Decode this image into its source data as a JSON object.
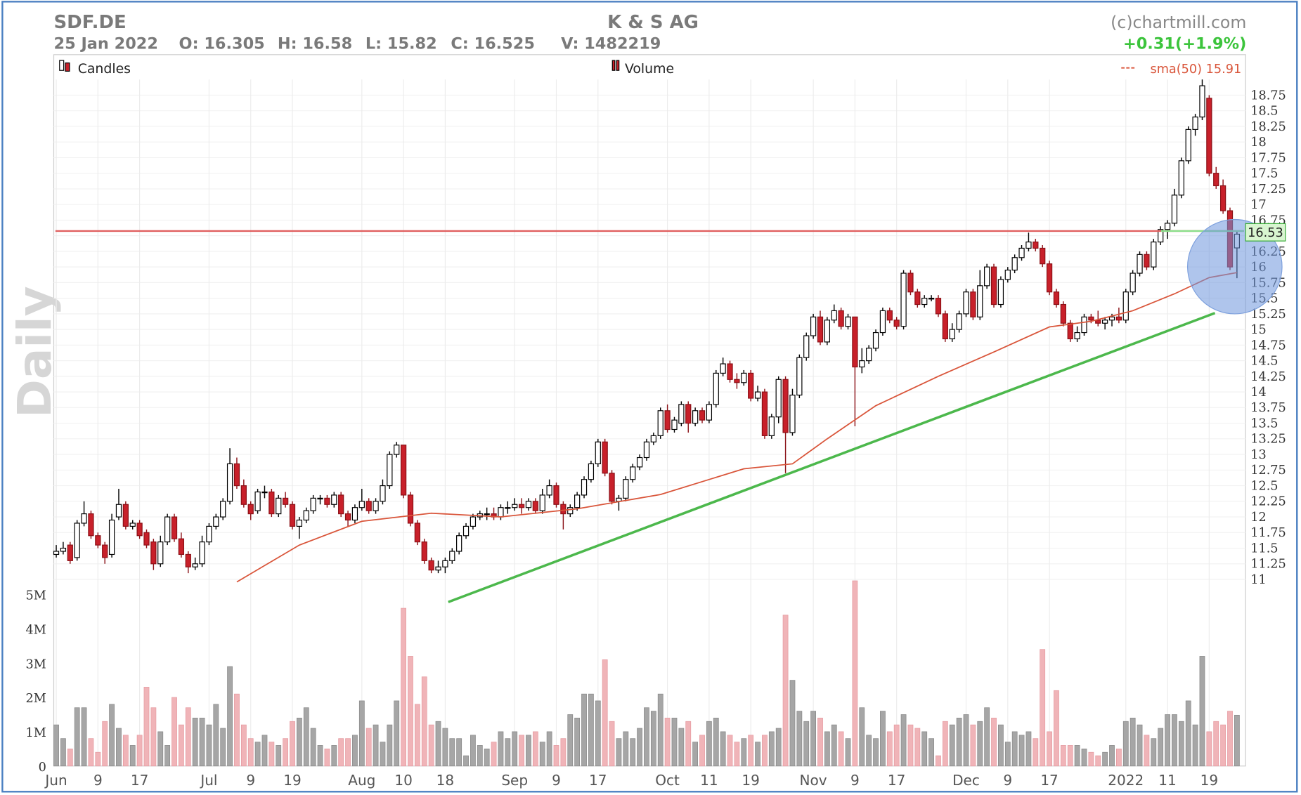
{
  "header": {
    "symbol": "SDF.DE",
    "company": "K & S AG",
    "source": "(c)chartmill.com",
    "date": "25 Jan 2022",
    "open": "O: 16.305",
    "high": "H: 16.58",
    "low": "L: 15.82",
    "close": "C: 16.525",
    "volume": "V: 1482219",
    "change": "+0.31(+1.9%)"
  },
  "chart_data": {
    "type": "candlestick",
    "label": "Daily",
    "legend": [
      "Candles",
      "Volume"
    ],
    "categories": [
      "Jun",
      null,
      null,
      null,
      null,
      null,
      "9",
      null,
      null,
      null,
      null,
      null,
      "17",
      null,
      null,
      null,
      null,
      null,
      null,
      null,
      null,
      null,
      "Jul",
      null,
      null,
      null,
      null,
      null,
      "9",
      null,
      null,
      null,
      null,
      null,
      "19",
      null,
      null,
      null,
      null,
      null,
      null,
      null,
      null,
      null,
      "Aug",
      null,
      null,
      null,
      null,
      null,
      "10",
      null,
      null,
      null,
      null,
      null,
      "18",
      null,
      null,
      null,
      null,
      null,
      null,
      null,
      null,
      null,
      "Sep",
      null,
      null,
      null,
      null,
      null,
      "9",
      null,
      null,
      null,
      null,
      null,
      "17",
      null,
      null,
      null,
      null,
      null,
      null,
      null,
      null,
      null,
      "Oct",
      null,
      null,
      null,
      null,
      null,
      "11",
      null,
      null,
      null,
      null,
      null,
      "19",
      null,
      null,
      null,
      null,
      null,
      null,
      null,
      null,
      "Nov",
      null,
      null,
      null,
      null,
      null,
      "9",
      null,
      null,
      null,
      null,
      null,
      "17",
      null,
      null,
      null,
      null,
      null,
      null,
      null,
      null,
      null,
      "Dec",
      null,
      null,
      null,
      null,
      null,
      "9",
      null,
      null,
      null,
      null,
      null,
      "17",
      null,
      null,
      null,
      null,
      null,
      null,
      null,
      null,
      null,
      null,
      "2022",
      null,
      null,
      null,
      null,
      null,
      "11",
      null,
      null,
      null,
      null,
      null,
      "19",
      null,
      null,
      null,
      null
    ],
    "ohlc": [
      [
        11.4,
        11.55,
        11.35,
        11.45
      ],
      [
        11.45,
        11.6,
        11.4,
        11.5
      ],
      [
        11.55,
        11.6,
        11.25,
        11.3
      ],
      [
        11.35,
        11.95,
        11.3,
        11.9
      ],
      [
        11.9,
        12.25,
        11.85,
        12.05
      ],
      [
        12.05,
        12.1,
        11.65,
        11.7
      ],
      [
        11.7,
        11.75,
        11.5,
        11.55
      ],
      [
        11.55,
        11.6,
        11.25,
        11.35
      ],
      [
        11.4,
        12.05,
        11.35,
        11.95
      ],
      [
        12.0,
        12.45,
        11.95,
        12.2
      ],
      [
        12.2,
        12.25,
        11.8,
        11.85
      ],
      [
        11.85,
        11.95,
        11.8,
        11.9
      ],
      [
        11.9,
        11.95,
        11.65,
        11.7
      ],
      [
        11.75,
        11.8,
        11.5,
        11.55
      ],
      [
        11.6,
        11.65,
        11.15,
        11.25
      ],
      [
        11.25,
        11.7,
        11.2,
        11.6
      ],
      [
        11.6,
        12.05,
        11.55,
        12.0
      ],
      [
        12.0,
        12.05,
        11.6,
        11.65
      ],
      [
        11.65,
        11.75,
        11.35,
        11.4
      ],
      [
        11.4,
        11.45,
        11.1,
        11.2
      ],
      [
        11.2,
        11.35,
        11.15,
        11.25
      ],
      [
        11.25,
        11.7,
        11.2,
        11.6
      ],
      [
        11.6,
        11.9,
        11.55,
        11.85
      ],
      [
        11.85,
        12.05,
        11.8,
        12.0
      ],
      [
        12.0,
        12.3,
        11.95,
        12.25
      ],
      [
        12.25,
        13.1,
        12.2,
        12.85
      ],
      [
        12.85,
        12.95,
        12.45,
        12.5
      ],
      [
        12.5,
        12.6,
        12.15,
        12.2
      ],
      [
        12.2,
        12.25,
        11.95,
        12.05
      ],
      [
        12.1,
        12.45,
        12.05,
        12.4
      ],
      [
        12.4,
        12.5,
        12.3,
        12.4
      ],
      [
        12.4,
        12.45,
        12.0,
        12.05
      ],
      [
        12.05,
        12.35,
        12.0,
        12.3
      ],
      [
        12.3,
        12.4,
        12.15,
        12.2
      ],
      [
        12.2,
        12.25,
        11.8,
        11.85
      ],
      [
        11.85,
        12.0,
        11.65,
        11.95
      ],
      [
        11.95,
        12.15,
        11.9,
        12.1
      ],
      [
        12.1,
        12.35,
        12.05,
        12.3
      ],
      [
        12.3,
        12.35,
        12.2,
        12.3
      ],
      [
        12.3,
        12.35,
        12.15,
        12.2
      ],
      [
        12.2,
        12.4,
        12.15,
        12.35
      ],
      [
        12.35,
        12.4,
        12.0,
        12.05
      ],
      [
        12.05,
        12.1,
        11.85,
        11.95
      ],
      [
        11.95,
        12.2,
        11.9,
        12.15
      ],
      [
        12.15,
        12.45,
        12.1,
        12.25
      ],
      [
        12.25,
        12.3,
        12.05,
        12.1
      ],
      [
        12.1,
        12.3,
        12.05,
        12.25
      ],
      [
        12.25,
        12.6,
        12.2,
        12.5
      ],
      [
        12.5,
        13.05,
        12.45,
        13.0
      ],
      [
        13.0,
        13.2,
        12.95,
        13.15
      ],
      [
        13.15,
        13.15,
        12.3,
        12.35
      ],
      [
        12.35,
        12.4,
        11.85,
        11.9
      ],
      [
        11.9,
        11.95,
        11.55,
        11.6
      ],
      [
        11.6,
        11.65,
        11.25,
        11.3
      ],
      [
        11.3,
        11.35,
        11.1,
        11.15
      ],
      [
        11.15,
        11.3,
        11.1,
        11.2
      ],
      [
        11.2,
        11.35,
        11.1,
        11.3
      ],
      [
        11.3,
        11.5,
        11.25,
        11.45
      ],
      [
        11.45,
        11.75,
        11.4,
        11.7
      ],
      [
        11.7,
        11.9,
        11.65,
        11.85
      ],
      [
        11.85,
        12.05,
        11.8,
        12.0
      ],
      [
        12.0,
        12.1,
        11.95,
        12.05
      ],
      [
        12.05,
        12.15,
        11.95,
        12.05
      ],
      [
        12.05,
        12.15,
        11.95,
        12.0
      ],
      [
        12.0,
        12.2,
        11.95,
        12.15
      ],
      [
        12.15,
        12.25,
        12.05,
        12.15
      ],
      [
        12.15,
        12.3,
        12.1,
        12.2
      ],
      [
        12.2,
        12.3,
        12.05,
        12.15
      ],
      [
        12.15,
        12.3,
        12.1,
        12.25
      ],
      [
        12.25,
        12.3,
        12.05,
        12.1
      ],
      [
        12.1,
        12.45,
        12.05,
        12.35
      ],
      [
        12.35,
        12.6,
        12.3,
        12.5
      ],
      [
        12.5,
        12.55,
        12.15,
        12.2
      ],
      [
        12.2,
        12.25,
        11.8,
        12.05
      ],
      [
        12.05,
        12.2,
        12.0,
        12.15
      ],
      [
        12.15,
        12.4,
        12.1,
        12.35
      ],
      [
        12.35,
        12.65,
        12.3,
        12.6
      ],
      [
        12.6,
        12.9,
        12.55,
        12.85
      ],
      [
        12.85,
        13.25,
        12.8,
        13.2
      ],
      [
        13.2,
        13.25,
        12.65,
        12.7
      ],
      [
        12.7,
        12.75,
        12.2,
        12.25
      ],
      [
        12.25,
        12.35,
        12.1,
        12.3
      ],
      [
        12.3,
        12.65,
        12.25,
        12.6
      ],
      [
        12.6,
        12.85,
        12.55,
        12.8
      ],
      [
        12.8,
        13.0,
        12.75,
        12.95
      ],
      [
        12.95,
        13.25,
        12.9,
        13.2
      ],
      [
        13.2,
        13.35,
        13.15,
        13.3
      ],
      [
        13.3,
        13.75,
        13.25,
        13.7
      ],
      [
        13.7,
        13.8,
        13.35,
        13.4
      ],
      [
        13.4,
        13.6,
        13.35,
        13.55
      ],
      [
        13.5,
        13.85,
        13.45,
        13.8
      ],
      [
        13.8,
        13.85,
        13.35,
        13.5
      ],
      [
        13.5,
        13.75,
        13.45,
        13.7
      ],
      [
        13.7,
        13.75,
        13.5,
        13.55
      ],
      [
        13.55,
        13.85,
        13.5,
        13.8
      ],
      [
        13.8,
        14.35,
        13.75,
        14.3
      ],
      [
        14.3,
        14.55,
        14.25,
        14.45
      ],
      [
        14.45,
        14.5,
        14.15,
        14.2
      ],
      [
        14.2,
        14.3,
        14.05,
        14.15
      ],
      [
        14.15,
        14.35,
        14.1,
        14.3
      ],
      [
        14.3,
        14.35,
        13.85,
        13.9
      ],
      [
        13.9,
        14.1,
        13.85,
        14.0
      ],
      [
        14.0,
        14.05,
        13.25,
        13.3
      ],
      [
        13.3,
        13.65,
        13.25,
        13.6
      ],
      [
        13.6,
        14.25,
        13.5,
        14.2
      ],
      [
        14.2,
        14.25,
        12.7,
        13.35
      ],
      [
        13.35,
        14.05,
        13.3,
        13.95
      ],
      [
        13.95,
        14.6,
        13.9,
        14.55
      ],
      [
        14.55,
        14.95,
        14.5,
        14.9
      ],
      [
        14.9,
        15.25,
        14.85,
        15.2
      ],
      [
        15.2,
        15.3,
        14.75,
        14.8
      ],
      [
        14.8,
        15.2,
        14.75,
        15.15
      ],
      [
        15.15,
        15.4,
        15.1,
        15.3
      ],
      [
        15.3,
        15.35,
        15.0,
        15.05
      ],
      [
        15.05,
        15.25,
        15.0,
        15.2
      ],
      [
        15.2,
        15.2,
        13.45,
        14.4
      ],
      [
        14.4,
        14.7,
        14.3,
        14.5
      ],
      [
        14.5,
        14.75,
        14.45,
        14.7
      ],
      [
        14.7,
        15.0,
        14.65,
        14.95
      ],
      [
        14.95,
        15.35,
        14.9,
        15.3
      ],
      [
        15.3,
        15.35,
        15.1,
        15.15
      ],
      [
        15.15,
        15.2,
        15.0,
        15.05
      ],
      [
        15.05,
        15.95,
        15.0,
        15.9
      ],
      [
        15.9,
        15.95,
        15.55,
        15.6
      ],
      [
        15.6,
        15.65,
        15.35,
        15.4
      ],
      [
        15.4,
        15.55,
        15.35,
        15.5
      ],
      [
        15.5,
        15.55,
        15.45,
        15.5
      ],
      [
        15.5,
        15.55,
        15.2,
        15.25
      ],
      [
        15.25,
        15.3,
        14.8,
        14.85
      ],
      [
        14.85,
        15.1,
        14.8,
        15.0
      ],
      [
        15.0,
        15.3,
        14.95,
        15.25
      ],
      [
        15.25,
        15.65,
        15.2,
        15.6
      ],
      [
        15.6,
        15.65,
        15.15,
        15.2
      ],
      [
        15.2,
        15.95,
        15.15,
        15.7
      ],
      [
        15.7,
        16.05,
        15.65,
        16.0
      ],
      [
        16.0,
        16.05,
        15.35,
        15.4
      ],
      [
        15.4,
        15.85,
        15.35,
        15.8
      ],
      [
        15.8,
        16.0,
        15.75,
        15.95
      ],
      [
        15.95,
        16.2,
        15.9,
        16.15
      ],
      [
        16.15,
        16.35,
        16.1,
        16.3
      ],
      [
        16.3,
        16.55,
        16.25,
        16.4
      ],
      [
        16.4,
        16.45,
        16.25,
        16.3
      ],
      [
        16.3,
        16.35,
        16.0,
        16.05
      ],
      [
        16.05,
        16.1,
        15.55,
        15.6
      ],
      [
        15.6,
        15.65,
        15.35,
        15.4
      ],
      [
        15.4,
        15.45,
        15.05,
        15.1
      ],
      [
        15.1,
        15.15,
        14.8,
        14.85
      ],
      [
        14.85,
        15.05,
        14.8,
        14.95
      ],
      [
        14.95,
        15.25,
        14.9,
        15.2
      ],
      [
        15.2,
        15.25,
        15.1,
        15.15
      ],
      [
        15.15,
        15.3,
        15.05,
        15.1
      ],
      [
        15.1,
        15.2,
        15.0,
        15.15
      ],
      [
        15.15,
        15.25,
        15.05,
        15.2
      ],
      [
        15.2,
        15.35,
        15.1,
        15.15
      ],
      [
        15.15,
        15.65,
        15.1,
        15.6
      ],
      [
        15.6,
        15.95,
        15.55,
        15.9
      ],
      [
        15.9,
        16.25,
        15.85,
        16.2
      ],
      [
        16.2,
        16.25,
        15.95,
        16.0
      ],
      [
        16.0,
        16.45,
        15.95,
        16.4
      ],
      [
        16.4,
        16.65,
        16.35,
        16.6
      ],
      [
        16.6,
        16.75,
        16.45,
        16.7
      ],
      [
        16.7,
        17.25,
        16.65,
        17.15
      ],
      [
        17.15,
        17.75,
        17.1,
        17.7
      ],
      [
        17.7,
        18.25,
        17.65,
        18.2
      ],
      [
        18.2,
        18.45,
        18.1,
        18.4
      ],
      [
        18.4,
        19.0,
        18.35,
        18.9
      ],
      [
        18.7,
        18.75,
        17.45,
        17.5
      ],
      [
        17.5,
        17.6,
        17.25,
        17.3
      ],
      [
        17.3,
        17.4,
        16.85,
        16.9
      ],
      [
        16.9,
        16.95,
        15.95,
        16.0
      ],
      [
        16.305,
        16.58,
        15.82,
        16.525
      ]
    ],
    "volume": [
      1.2,
      0.8,
      0.5,
      1.7,
      1.7,
      0.8,
      0.4,
      1.3,
      1.8,
      1.1,
      0.9,
      0.6,
      0.9,
      2.3,
      1.7,
      1.0,
      0.6,
      2.0,
      1.2,
      1.7,
      1.4,
      1.4,
      1.2,
      1.8,
      1.1,
      2.9,
      2.1,
      1.2,
      0.8,
      0.7,
      0.9,
      0.7,
      0.6,
      0.8,
      1.3,
      1.4,
      1.7,
      1.1,
      0.6,
      0.5,
      0.6,
      0.8,
      0.8,
      0.9,
      1.9,
      1.1,
      1.2,
      0.7,
      1.2,
      1.9,
      4.6,
      3.2,
      1.8,
      2.6,
      1.2,
      1.3,
      1.1,
      0.8,
      0.8,
      0.3,
      0.9,
      0.6,
      0.5,
      0.7,
      1.0,
      0.8,
      1.0,
      0.9,
      0.9,
      1.0,
      0.7,
      1.0,
      0.6,
      0.8,
      1.5,
      1.4,
      2.1,
      2.1,
      1.9,
      3.1,
      1.3,
      0.8,
      1.0,
      0.8,
      1.1,
      1.7,
      1.6,
      2.1,
      1.4,
      1.4,
      1.1,
      1.3,
      0.7,
      0.9,
      1.3,
      1.4,
      1.0,
      0.9,
      0.7,
      0.8,
      0.9,
      0.7,
      0.9,
      1.0,
      1.1,
      4.4,
      2.5,
      1.6,
      1.3,
      1.6,
      1.4,
      1.0,
      1.2,
      1.0,
      0.8,
      5.4,
      1.7,
      0.9,
      0.8,
      1.6,
      1.0,
      1.2,
      1.5,
      1.2,
      1.1,
      1.0,
      0.8,
      0.3,
      1.3,
      1.2,
      1.4,
      1.5,
      1.2,
      1.3,
      1.7,
      1.4,
      1.2,
      0.7,
      1.0,
      0.9,
      1.0,
      0.8,
      3.4,
      1.0,
      2.2,
      0.6,
      0.6,
      0.6,
      0.5,
      0.4,
      0.3,
      0.4,
      0.6,
      0.5,
      1.3,
      1.4,
      1.2,
      0.9,
      0.8,
      1.1,
      1.5,
      1.5,
      1.3,
      1.9,
      1.2,
      3.2,
      1.0,
      1.3,
      1.2,
      1.6,
      1.482219
    ],
    "ylim": [
      10.85,
      19
    ],
    "yticks": [
      11,
      11.25,
      11.5,
      11.75,
      12,
      12.25,
      12.5,
      12.75,
      13,
      13.25,
      13.5,
      13.75,
      14,
      14.25,
      14.5,
      14.75,
      15,
      15.25,
      15.5,
      15.75,
      16,
      16.25,
      16.5,
      16.75,
      17,
      17.25,
      17.5,
      17.75,
      18,
      18.25,
      18.5,
      18.75
    ],
    "volume_ylim": [
      0,
      5.5
    ],
    "volume_yticks": [
      0,
      {
        "value": 1,
        "label": "1M"
      },
      {
        "value": 2,
        "label": "2M"
      },
      {
        "value": 3,
        "label": "3M"
      },
      {
        "value": 4,
        "label": "4M"
      },
      {
        "value": 5,
        "label": "5M"
      }
    ],
    "sma": {
      "name": "sma(50) 15.91",
      "color": "#d9553a",
      "x": [
        26,
        35,
        44,
        54,
        64,
        75,
        87,
        99,
        106,
        111,
        118,
        127,
        135,
        143,
        149,
        155,
        161,
        166,
        170
      ],
      "values": [
        10.96,
        11.55,
        11.93,
        12.06,
        12.0,
        12.13,
        12.36,
        12.77,
        12.85,
        13.25,
        13.78,
        14.25,
        14.64,
        15.04,
        15.13,
        15.3,
        15.57,
        15.83,
        15.91
      ]
    },
    "price_tag": "16.53",
    "colors": {
      "up": "#ffffff",
      "down": "#c8202a",
      "up_volume": "#a6a6a6",
      "down_volume": "#f0b4b8"
    },
    "grid": true
  }
}
